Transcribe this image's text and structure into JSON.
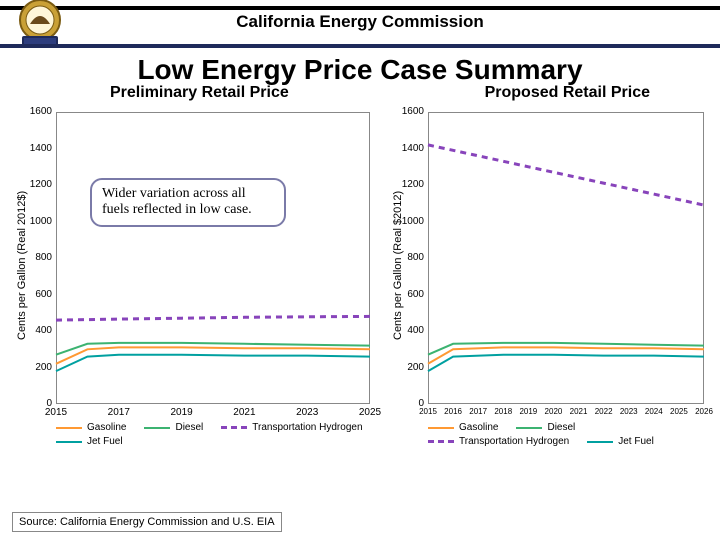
{
  "header": {
    "org": "California Energy Commission"
  },
  "main_title": "Low Energy Price Case Summary",
  "sub_left": "Preliminary Retail Price",
  "sub_right": "Proposed Retail Price",
  "source": "Source: California Energy Commission and U.S. EIA",
  "annotation": "Wider variation across all fuels reflected in low case.",
  "ylabel_left": "Cents per Gallon (Real 2012$)",
  "ylabel_right": "Cents per Gallon (Real $2012)",
  "left_chart": {
    "type": "line",
    "ylim": [
      0,
      1600
    ],
    "ytick_step": 200,
    "yticks": [
      0,
      200,
      400,
      600,
      800,
      1000,
      1200,
      1400,
      1600
    ],
    "xlim": [
      2015,
      2025
    ],
    "xticks": [
      2015,
      2017,
      2019,
      2021,
      2023,
      2025
    ],
    "background_color": "#ffffff",
    "series": {
      "gasoline": {
        "label": "Gasoline",
        "color": "#ff9933",
        "dash": false,
        "width": 2,
        "x": [
          2015,
          2016,
          2017,
          2019,
          2021,
          2023,
          2025
        ],
        "y": [
          220,
          300,
          310,
          310,
          305,
          305,
          300
        ]
      },
      "diesel": {
        "label": "Diesel",
        "color": "#3cb371",
        "dash": false,
        "width": 2,
        "x": [
          2015,
          2016,
          2017,
          2019,
          2021,
          2023,
          2025
        ],
        "y": [
          270,
          330,
          335,
          335,
          330,
          325,
          320
        ]
      },
      "hydrogen": {
        "label": "Transportation Hydrogen",
        "color": "#8844bb",
        "dash": true,
        "width": 3,
        "x": [
          2015,
          2017,
          2019,
          2021,
          2023,
          2025
        ],
        "y": [
          460,
          465,
          470,
          475,
          478,
          480
        ]
      },
      "jetfuel": {
        "label": "Jet Fuel",
        "color": "#00a0a0",
        "dash": false,
        "width": 2,
        "x": [
          2015,
          2016,
          2017,
          2019,
          2021,
          2023,
          2025
        ],
        "y": [
          180,
          260,
          270,
          270,
          265,
          265,
          260
        ]
      }
    },
    "legend_order": [
      "gasoline",
      "diesel",
      "hydrogen",
      "jetfuel"
    ]
  },
  "right_chart": {
    "type": "line",
    "ylim": [
      0,
      1600
    ],
    "ytick_step": 200,
    "yticks": [
      0,
      200,
      400,
      600,
      800,
      1000,
      1200,
      1400,
      1600
    ],
    "xlim": [
      2015,
      2026
    ],
    "xticks": [
      2015,
      2016,
      2017,
      2018,
      2019,
      2020,
      2021,
      2022,
      2023,
      2024,
      2025,
      2026
    ],
    "background_color": "#ffffff",
    "series": {
      "gasoline": {
        "label": "Gasoline",
        "color": "#ff9933",
        "dash": false,
        "width": 2,
        "x": [
          2015,
          2016,
          2018,
          2020,
          2022,
          2024,
          2026
        ],
        "y": [
          220,
          300,
          310,
          310,
          305,
          305,
          300
        ]
      },
      "diesel": {
        "label": "Diesel",
        "color": "#3cb371",
        "dash": false,
        "width": 2,
        "x": [
          2015,
          2016,
          2018,
          2020,
          2022,
          2024,
          2026
        ],
        "y": [
          270,
          330,
          335,
          335,
          330,
          325,
          320
        ]
      },
      "hydrogen": {
        "label": "Transportation Hydrogen",
        "color": "#8844bb",
        "dash": true,
        "width": 3,
        "x": [
          2015,
          2017,
          2019,
          2021,
          2023,
          2025,
          2026
        ],
        "y": [
          1420,
          1360,
          1300,
          1240,
          1180,
          1120,
          1090
        ]
      },
      "jetfuel": {
        "label": "Jet Fuel",
        "color": "#00a0a0",
        "dash": false,
        "width": 2,
        "x": [
          2015,
          2016,
          2018,
          2020,
          2022,
          2024,
          2026
        ],
        "y": [
          180,
          260,
          270,
          270,
          265,
          265,
          260
        ]
      }
    },
    "legend_order": [
      "gasoline",
      "diesel",
      "hydrogen",
      "jetfuel"
    ]
  }
}
